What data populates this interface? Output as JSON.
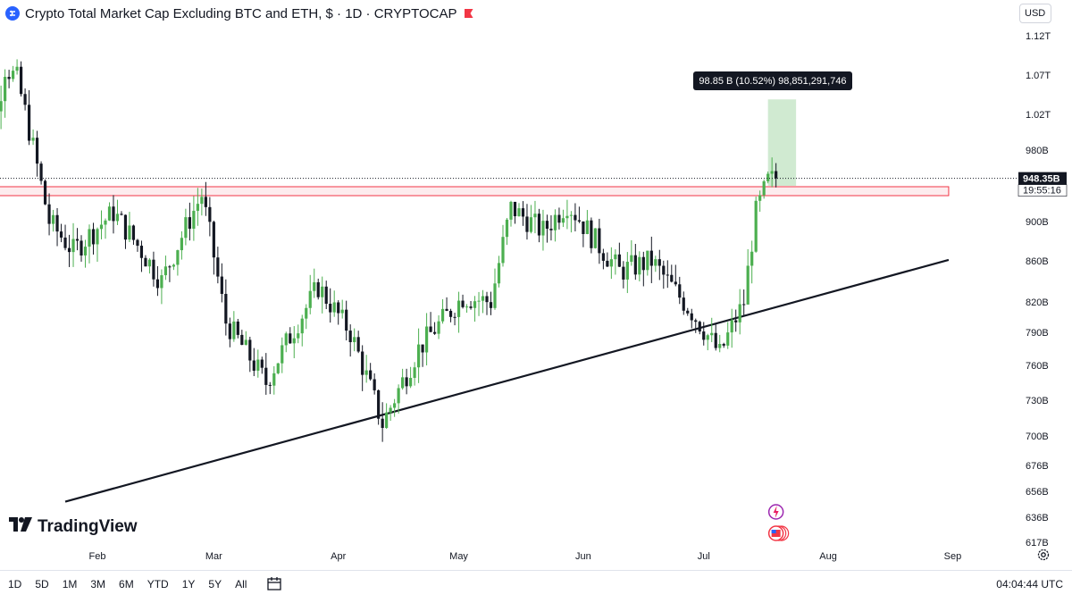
{
  "header": {
    "title": "Crypto Total Market Cap Excluding BTC and ETH, $ · 1D · CRYPTOCAP",
    "currency": "USD",
    "icon": "crypto-cap-icon"
  },
  "price": {
    "current": "948.35B",
    "countdown": "19:55:16"
  },
  "measurement": {
    "label": "98.85 B (10.52%) 98,851,291,746"
  },
  "bottom": {
    "ranges": [
      "1D",
      "5D",
      "1M",
      "3M",
      "6M",
      "YTD",
      "1Y",
      "5Y",
      "All"
    ],
    "clock": "04:04:44 UTC",
    "logo": "TradingView"
  },
  "colors": {
    "up": "#089981",
    "up_fill": "#4caf50",
    "down": "#131722",
    "resistance": "#f23645",
    "measure_fill": "#c8e6c9"
  },
  "chart_data": {
    "type": "candlestick",
    "title": "Crypto Total Market Cap Excluding BTC and ETH, $ · 1D · CRYPTOCAP",
    "x_ticks": [
      "Feb",
      "Mar",
      "Apr",
      "May",
      "Jun",
      "Jul",
      "Aug",
      "Sep"
    ],
    "y_ticks": [
      "1.12T",
      "1.07T",
      "1.02T",
      "980B",
      "900B",
      "860B",
      "820B",
      "790B",
      "760B",
      "730B",
      "700B",
      "676B",
      "656B",
      "636B",
      "617B"
    ],
    "last_price_label": "948.35B",
    "resistance_zone": {
      "from": "2024-01-04",
      "to": "2024-08-31",
      "value_B": 935
    },
    "trendline": {
      "from": {
        "date": "2024-01-24",
        "value_B": 648
      },
      "to": {
        "date": "2024-08-31",
        "value_B": 861
      }
    },
    "measure_box": {
      "from": "2024-07-17",
      "to": "2024-07-24",
      "low_B": 940,
      "high_B": 1039
    },
    "anchors": [
      {
        "date": "2024-01-01",
        "close_B": 960
      },
      {
        "date": "2024-01-04",
        "close_B": 935
      },
      {
        "date": "2024-01-09",
        "close_B": 1080
      },
      {
        "date": "2024-01-12",
        "close_B": 1065
      },
      {
        "date": "2024-01-20",
        "close_B": 900
      },
      {
        "date": "2024-01-26",
        "close_B": 870
      },
      {
        "date": "2024-02-05",
        "close_B": 910
      },
      {
        "date": "2024-02-12",
        "close_B": 870
      },
      {
        "date": "2024-02-17",
        "close_B": 840
      },
      {
        "date": "2024-02-27",
        "close_B": 930
      },
      {
        "date": "2024-03-04",
        "close_B": 800
      },
      {
        "date": "2024-03-14",
        "close_B": 745
      },
      {
        "date": "2024-03-27",
        "close_B": 835
      },
      {
        "date": "2024-04-04",
        "close_B": 790
      },
      {
        "date": "2024-04-12",
        "close_B": 710
      },
      {
        "date": "2024-04-21",
        "close_B": 775
      },
      {
        "date": "2024-05-02",
        "close_B": 825
      },
      {
        "date": "2024-05-09",
        "close_B": 820
      },
      {
        "date": "2024-05-14",
        "close_B": 915
      },
      {
        "date": "2024-05-22",
        "close_B": 890
      },
      {
        "date": "2024-05-28",
        "close_B": 920
      },
      {
        "date": "2024-06-04",
        "close_B": 880
      },
      {
        "date": "2024-06-10",
        "close_B": 850
      },
      {
        "date": "2024-06-18",
        "close_B": 860
      },
      {
        "date": "2024-06-28",
        "close_B": 810
      },
      {
        "date": "2024-07-05",
        "close_B": 770
      },
      {
        "date": "2024-07-11",
        "close_B": 820
      },
      {
        "date": "2024-07-14",
        "close_B": 910
      },
      {
        "date": "2024-07-17",
        "close_B": 945
      },
      {
        "date": "2024-07-19",
        "close_B": 948.35
      }
    ]
  }
}
